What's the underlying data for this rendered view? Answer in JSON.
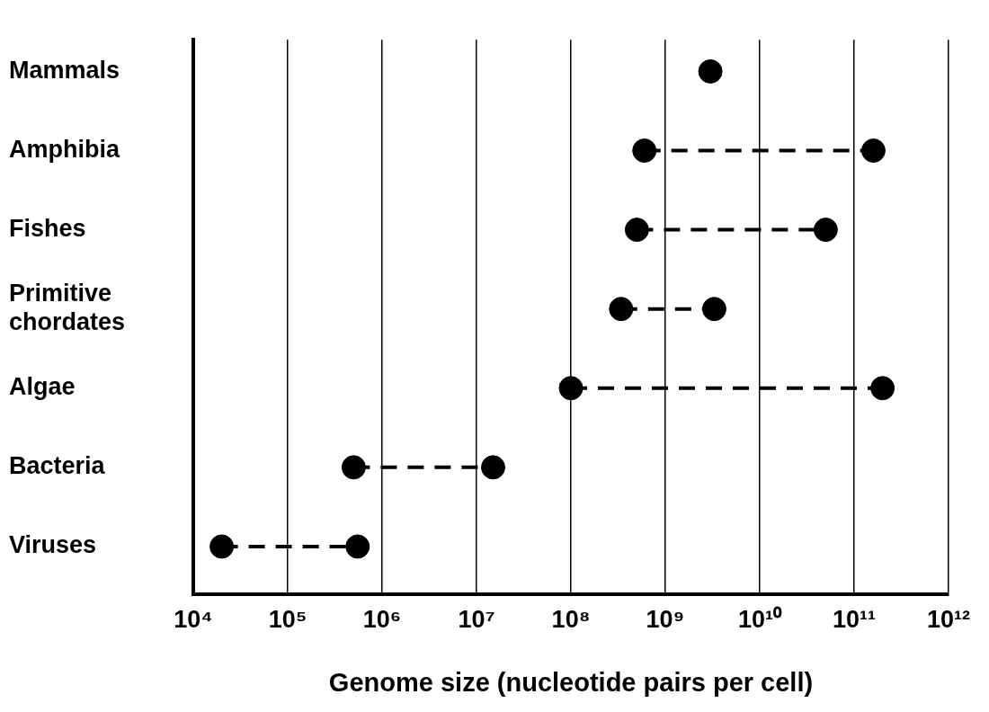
{
  "chart_data": {
    "type": "scatter",
    "orientation": "horizontal",
    "xlabel": "Genome size (nucleotide pairs per cell)",
    "categories": [
      "Mammals",
      "Amphibia",
      "Fishes",
      "Primitive chordates",
      "Algae",
      "Bacteria",
      "Viruses"
    ],
    "series": [
      {
        "color": "#000000",
        "values": [
          3000000000.0,
          600000000.0,
          500000000.0,
          340000000.0,
          100000000.0,
          500000.0,
          20000.0
        ]
      },
      {
        "color": "#000000",
        "values": [
          null,
          160000000000.0,
          50000000000.0,
          3300000000.0,
          200000000000.0,
          15000000.0,
          550000.0
        ]
      }
    ],
    "line_style": "dashed",
    "log": "x",
    "grid": "x",
    "legend": false,
    "marker": "circle",
    "xlim": [
      10000,
      1000000000000
    ],
    "xticks": [
      {
        "value": 10000,
        "label": "10⁴"
      },
      {
        "value": 100000,
        "label": "10⁵"
      },
      {
        "value": 1000000,
        "label": "10⁶"
      },
      {
        "value": 10000000,
        "label": "10⁷"
      },
      {
        "value": 100000000,
        "label": "10⁸"
      },
      {
        "value": 1000000000,
        "label": "10⁹"
      },
      {
        "value": 10000000000,
        "label": "10¹⁰"
      },
      {
        "value": 100000000000,
        "label": "10¹¹"
      },
      {
        "value": 1000000000000,
        "label": "10¹²"
      }
    ]
  }
}
